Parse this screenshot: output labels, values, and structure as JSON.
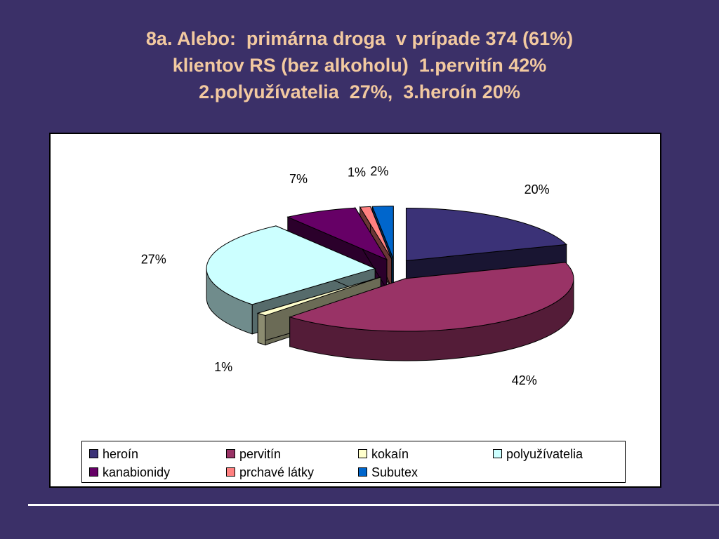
{
  "title_lines": [
    "8a. Alebo:  primárna droga  v prípade 374 (61%)",
    "klientov RS (bez alkoholu)  1.pervitín 42%",
    "2.polyužívatelia  27%,  3.heroín 20%"
  ],
  "colors": {
    "background": "#3b3068",
    "title": "#f2c9a0"
  },
  "chart_data": {
    "type": "pie",
    "style": "3d-exploded",
    "legend_position": "bottom",
    "series": [
      {
        "name": "heroín",
        "value": 20,
        "label": "20%",
        "color": "#3b3277"
      },
      {
        "name": "pervitín",
        "value": 42,
        "label": "42%",
        "color": "#993366"
      },
      {
        "name": "kokaín",
        "value": 1,
        "label": "1%",
        "color": "#ffffcc"
      },
      {
        "name": "polyužívatelia",
        "value": 27,
        "label": "27%",
        "color": "#ccffff"
      },
      {
        "name": "kanabionidy",
        "value": 7,
        "label": "7%",
        "color": "#660066"
      },
      {
        "name": "prchavé látky",
        "value": 1,
        "label": "1%",
        "color": "#ff8080"
      },
      {
        "name": "Subutex",
        "value": 2,
        "label": "2%",
        "color": "#0066cc"
      }
    ]
  }
}
